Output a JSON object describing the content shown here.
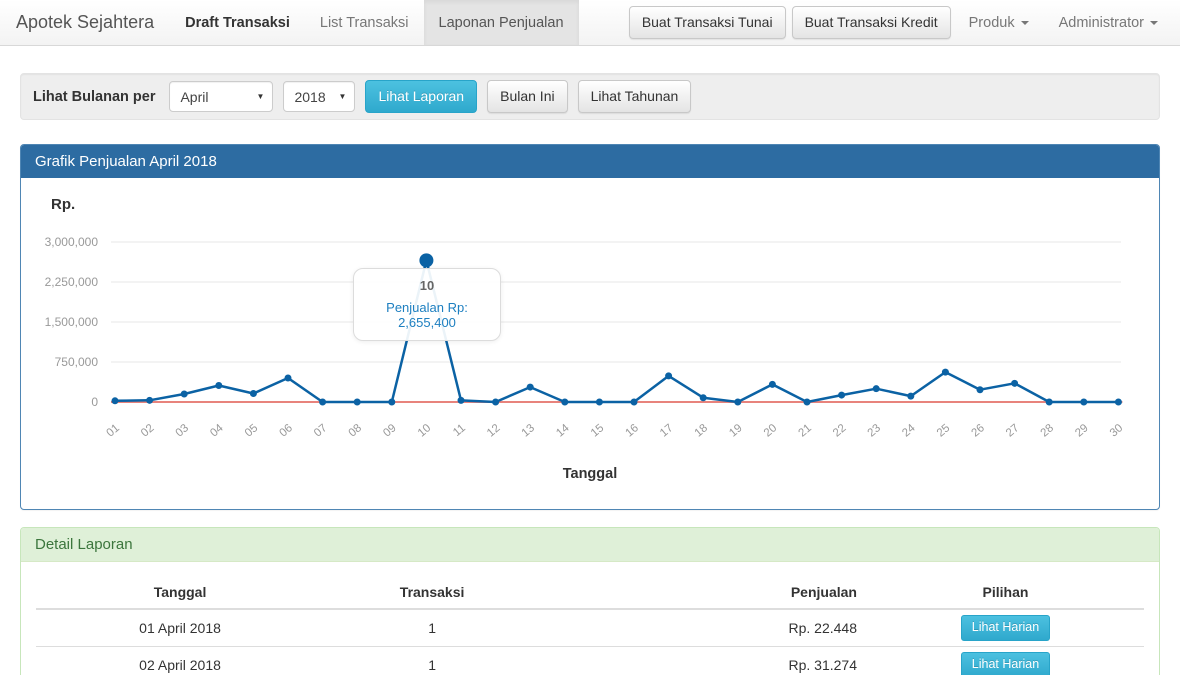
{
  "navbar": {
    "brand": "Apotek Sejahtera",
    "items": [
      {
        "label": "Draft Transaksi"
      },
      {
        "label": "List Transaksi"
      },
      {
        "label": "Laponan Penjualan"
      }
    ],
    "buttons": [
      {
        "label": "Buat Transaksi Tunai"
      },
      {
        "label": "Buat Transaksi Kredit"
      }
    ],
    "dropdowns": [
      {
        "label": "Produk"
      },
      {
        "label": "Administrator"
      }
    ]
  },
  "filter": {
    "label": "Lihat Bulanan per",
    "month_value": "April",
    "year_value": "2018",
    "submit_label": "Lihat Laporan",
    "this_month_label": "Bulan Ini",
    "yearly_label": "Lihat Tahunan"
  },
  "chart_panel": {
    "title": "Grafik Penjualan April 2018",
    "y_unit": "Rp.",
    "x_title": "Tanggal",
    "tooltip": {
      "day": "10",
      "text": "Penjualan Rp: 2,655,400"
    }
  },
  "chart_data": {
    "type": "line",
    "title": "Grafik Penjualan April 2018",
    "xlabel": "Tanggal",
    "ylabel": "Rp.",
    "x": [
      "01",
      "02",
      "03",
      "04",
      "05",
      "06",
      "07",
      "08",
      "09",
      "10",
      "11",
      "12",
      "13",
      "14",
      "15",
      "16",
      "17",
      "18",
      "19",
      "20",
      "21",
      "22",
      "23",
      "24",
      "25",
      "26",
      "27",
      "28",
      "29",
      "30"
    ],
    "series": [
      {
        "name": "Penjualan",
        "color": "#0b62a4",
        "values": [
          22448,
          31274,
          150000,
          310000,
          160000,
          450000,
          0,
          0,
          0,
          2655400,
          30000,
          0,
          280000,
          0,
          0,
          0,
          490000,
          80000,
          0,
          330000,
          0,
          130000,
          250000,
          110000,
          560000,
          230000,
          350000,
          0,
          0,
          0
        ]
      },
      {
        "name": "zero-baseline",
        "color": "#e8837c",
        "values": [
          0,
          0,
          0,
          0,
          0,
          0,
          0,
          0,
          0,
          0,
          0,
          0,
          0,
          0,
          0,
          0,
          0,
          0,
          0,
          0,
          0,
          0,
          0,
          0,
          0,
          0,
          0,
          0,
          0,
          0
        ]
      }
    ],
    "ylim": [
      0,
      3000000
    ],
    "yticks": [
      0,
      750000,
      1500000,
      2250000,
      3000000
    ],
    "ytick_labels": [
      "0",
      "750,000",
      "1,500,000",
      "2,250,000",
      "3,000,000"
    ],
    "highlight_index": 9,
    "grid": true,
    "legend": false
  },
  "detail_panel": {
    "title": "Detail Laporan",
    "table": {
      "headers": [
        "Tanggal",
        "Transaksi",
        "Penjualan",
        "Pilihan"
      ],
      "rows": [
        {
          "tanggal": "01 April 2018",
          "transaksi": "1",
          "penjualan": "Rp. 22.448",
          "action": "Lihat Harian"
        },
        {
          "tanggal": "02 April 2018",
          "transaksi": "1",
          "penjualan": "Rp. 31.274",
          "action": "Lihat Harian"
        }
      ]
    }
  },
  "colors": {
    "accent_blue": "#2d6ca2",
    "info_button": "#39b3d7",
    "line": "#0b62a4",
    "baseline_red": "#e8837c",
    "success_bg": "#dff0d8",
    "success_text": "#3c763d"
  }
}
